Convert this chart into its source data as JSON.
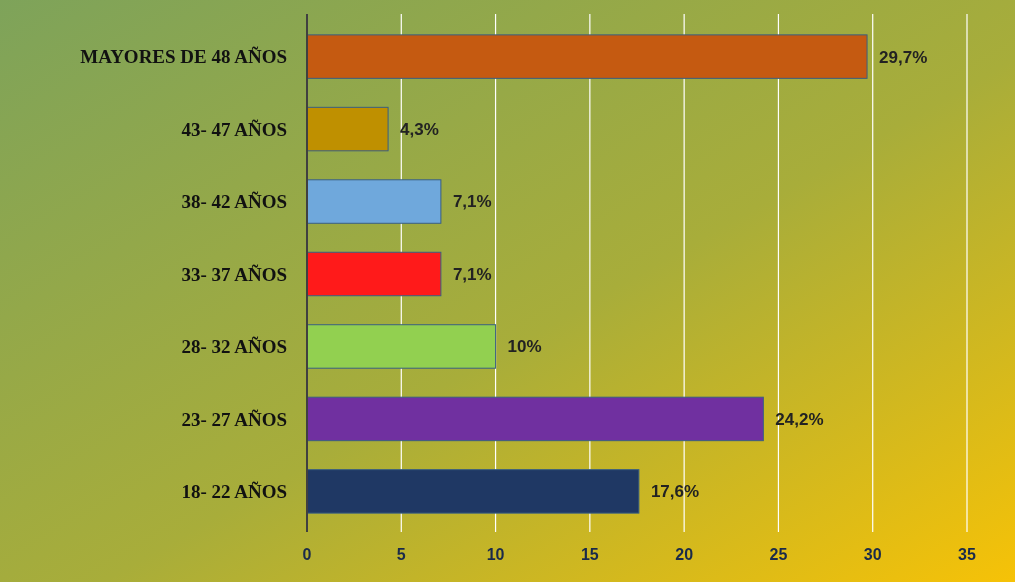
{
  "chart_data": {
    "type": "bar",
    "orientation": "horizontal",
    "categories": [
      "MAYORES DE 48 AÑOS",
      "43- 47 AÑOS",
      "38- 42 AÑOS",
      "33- 37 AÑOS",
      "28- 32 AÑOS",
      "23- 27 AÑOS",
      "18- 22 AÑOS"
    ],
    "values": [
      29.7,
      4.3,
      7.1,
      7.1,
      10,
      24.2,
      17.6
    ],
    "colors": [
      "#c55a11",
      "#bf9000",
      "#6fa8dc",
      "#ff1a1a",
      "#92d050",
      "#7030a0",
      "#1f3864"
    ],
    "value_labels": [
      "29,7%",
      "4,3%",
      "7,1%",
      "7,1%",
      "10%",
      "24,2%",
      "17,6%"
    ],
    "xlim": [
      0,
      35
    ],
    "xticks": [
      0,
      5,
      10,
      15,
      20,
      25,
      30,
      35
    ],
    "grid": "x"
  }
}
